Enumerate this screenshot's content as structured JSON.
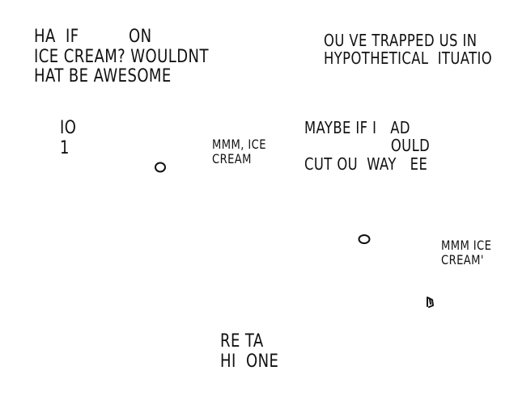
{
  "texts": {
    "top_left": "HA  IF          ON\nICE CREAM? WOULDNT\nHAT BE AWESOME",
    "top_right": "OU VE TRAPPED US IN\nHYPOTHETICAL  ITUATIO",
    "mid_left": "IO\n1",
    "mid_center": "MMM, ICE\nCREAM",
    "mid_right": "MAYBE IF I   AD\n                   OULD\nCUT OU  WAY   EE",
    "lower_right": "MMM ICE\nCREAM'",
    "bottom": "RE TA\nHI  ONE"
  }
}
